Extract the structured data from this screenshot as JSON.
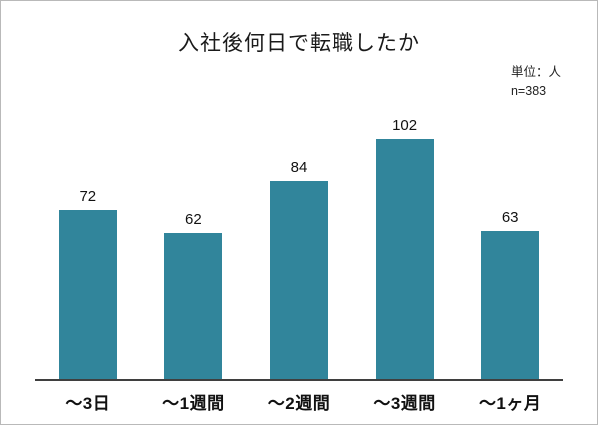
{
  "title": "入社後何日で転職したか",
  "note": {
    "unit": "単位：人",
    "sample": "n=383"
  },
  "chart_data": {
    "type": "bar",
    "title": "入社後何日で転職したか",
    "categories": [
      "～3日",
      "～1週間",
      "～2週間",
      "～3週間",
      "～1ヶ月"
    ],
    "values": [
      72,
      62,
      84,
      102,
      63
    ],
    "xlabel": "",
    "ylabel": "",
    "ylim": [
      0,
      110
    ],
    "grid": false,
    "legend": null,
    "bar_color": "#31859b",
    "axis_line_color": "#3f3f3f",
    "value_labels_shown": true
  }
}
